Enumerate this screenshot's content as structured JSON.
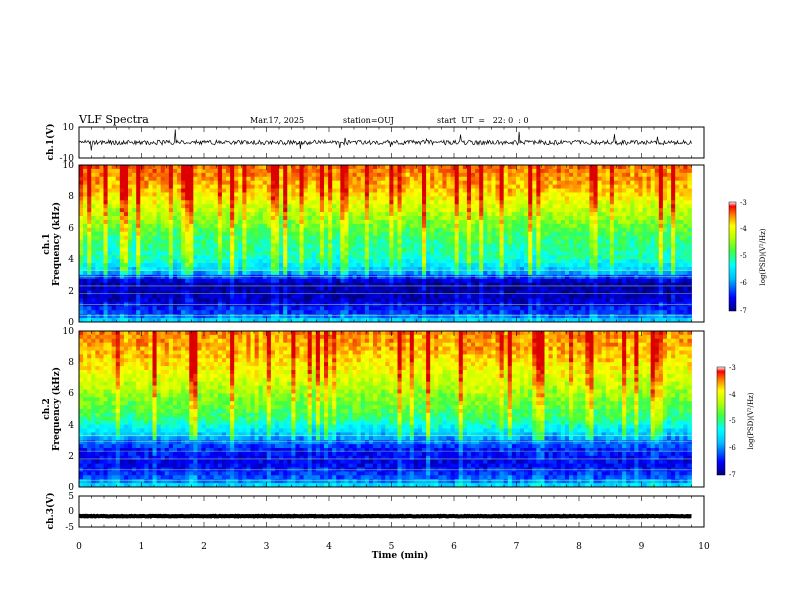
{
  "header": {
    "title": "VLF Spectra",
    "date": "Mar.17, 2025",
    "station": "station=OUJ",
    "start_time": "start  UT  =   22: 0  : 0"
  },
  "colors": {
    "palette": [
      "#000080",
      "#0000ff",
      "#00a0ff",
      "#00ffff",
      "#00ff80",
      "#40ff00",
      "#c0ff00",
      "#ffff00",
      "#ffa000",
      "#ff3000",
      "#d00000"
    ]
  },
  "chart_data": [
    {
      "panel": "ch1-waveform",
      "type": "line",
      "ylabel": "ch.1(V)",
      "ylim": [
        -10,
        10
      ],
      "yticks": [
        "10",
        "-10"
      ],
      "baseline": 0,
      "noise_amplitude": 3
    },
    {
      "panel": "ch1-spectrogram",
      "type": "heatmap",
      "ylabel_top": "ch.1",
      "ylabel": "Frequency (kHz)",
      "ylim": [
        0,
        10
      ],
      "yticks": [
        "0",
        "2",
        "4",
        "6",
        "8",
        "10"
      ],
      "colorbar": {
        "label": "log(PSD)(V²/Hz)",
        "range": [
          -7,
          -3
        ],
        "ticks": [
          "-3",
          "-4",
          "-5",
          "-6",
          "-7"
        ]
      },
      "frequency_profile": [
        {
          "f": 0,
          "value": -5.5
        },
        {
          "f": 0.5,
          "value": -6.3
        },
        {
          "f": 1.5,
          "value": -6.8
        },
        {
          "f": 2.5,
          "value": -6.9
        },
        {
          "f": 3.2,
          "value": -5.8
        },
        {
          "f": 4,
          "value": -5.2
        },
        {
          "f": 5.5,
          "value": -4.9
        },
        {
          "f": 7,
          "value": -4.3
        },
        {
          "f": 8.5,
          "value": -3.7
        },
        {
          "f": 10,
          "value": -3.4
        }
      ]
    },
    {
      "panel": "ch2-spectrogram",
      "type": "heatmap",
      "ylabel_top": "ch.2",
      "ylabel": "Frequency (kHz)",
      "ylim": [
        0,
        10
      ],
      "yticks": [
        "0",
        "2",
        "4",
        "6",
        "8",
        "10"
      ],
      "colorbar": {
        "label": "log(PSD)(V²/Hz)",
        "range": [
          -7,
          -3
        ],
        "ticks": [
          "-3",
          "-4",
          "-5",
          "-6",
          "-7"
        ]
      },
      "frequency_profile": [
        {
          "f": 0,
          "value": -5.4
        },
        {
          "f": 0.5,
          "value": -6.2
        },
        {
          "f": 1.5,
          "value": -6.6
        },
        {
          "f": 2.5,
          "value": -6.4
        },
        {
          "f": 3.5,
          "value": -5.6
        },
        {
          "f": 4.5,
          "value": -4.9
        },
        {
          "f": 5.5,
          "value": -4.6
        },
        {
          "f": 7,
          "value": -4.1
        },
        {
          "f": 8.5,
          "value": -3.7
        },
        {
          "f": 10,
          "value": -3.5
        }
      ]
    },
    {
      "panel": "ch3-waveform",
      "type": "line",
      "ylabel": "ch.3(V)",
      "ylim": [
        -5,
        5
      ],
      "yticks": [
        "5",
        "0",
        "-5"
      ],
      "baseline": -1.5,
      "noise_amplitude": 0.2
    }
  ],
  "xaxis": {
    "label": "Time (min)",
    "range": [
      0,
      10
    ],
    "ticks": [
      "0",
      "1",
      "2",
      "3",
      "4",
      "5",
      "6",
      "7",
      "8",
      "9",
      "10"
    ],
    "data_end": 9.8
  }
}
